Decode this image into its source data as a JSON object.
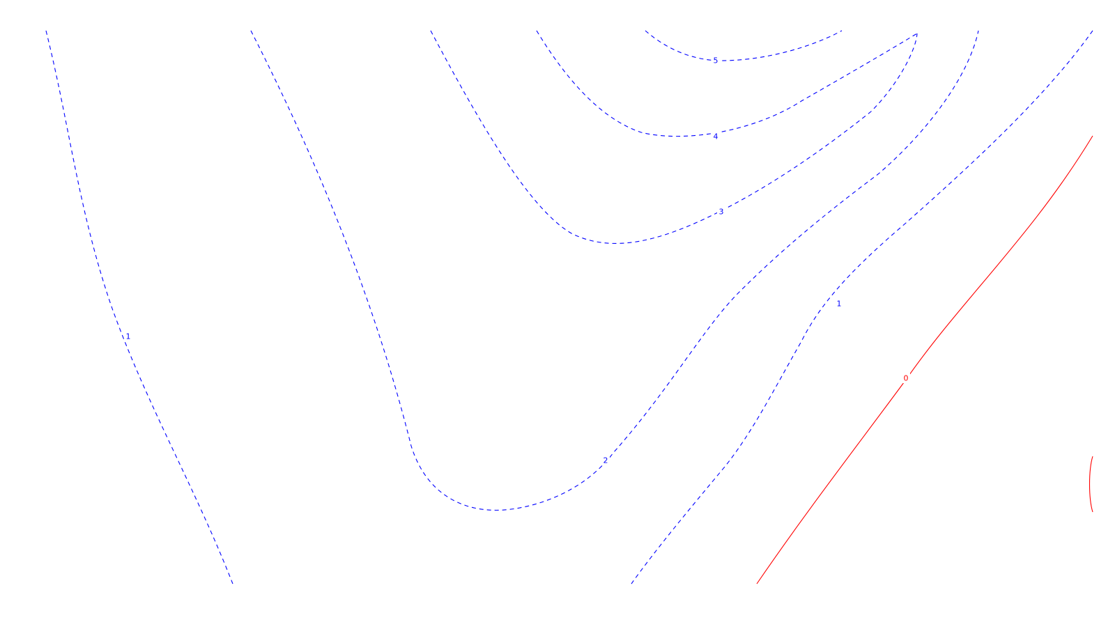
{
  "chart_data": {
    "type": "contour",
    "title": "",
    "xlabel": "",
    "ylabel": "",
    "grid": false,
    "legend": "none",
    "colors": {
      "positive": "#0000ff",
      "zero": "#ff0000"
    },
    "line_styles": {
      "positive": "dashed",
      "zero": "solid"
    },
    "levels": [
      {
        "value": 5,
        "label": "5",
        "color": "#0000ff",
        "style": "dashed"
      },
      {
        "value": 4,
        "label": "4",
        "color": "#0000ff",
        "style": "dashed"
      },
      {
        "value": 3,
        "label": "3",
        "color": "#0000ff",
        "style": "dashed"
      },
      {
        "value": 2,
        "label": "2",
        "color": "#0000ff",
        "style": "dashed"
      },
      {
        "value": 1,
        "label": "1",
        "color": "#0000ff",
        "style": "dashed"
      },
      {
        "value": 0,
        "label": "0",
        "color": "#ff0000",
        "style": "solid"
      }
    ]
  }
}
